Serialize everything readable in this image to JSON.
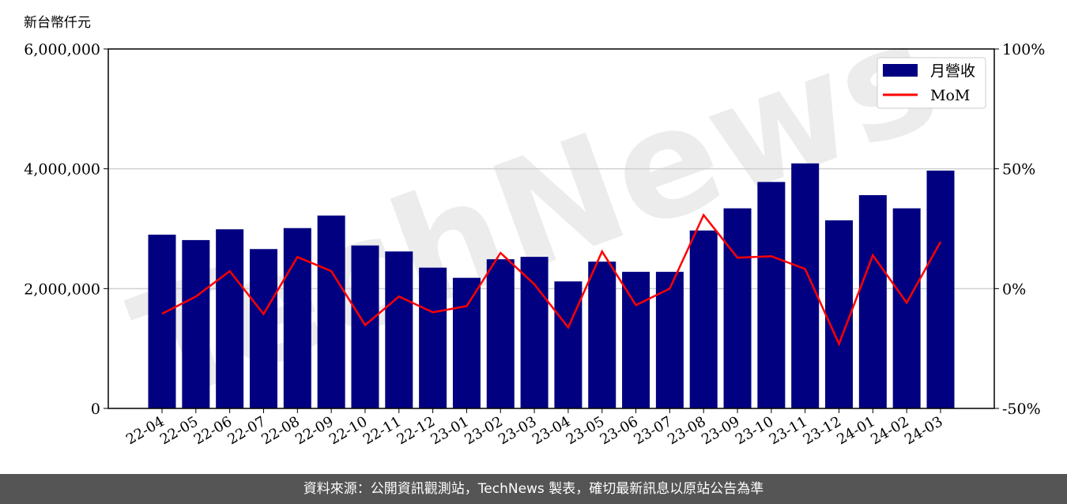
{
  "chart_data": {
    "type": "bar+line",
    "ylabel_left": "新台幣仟元",
    "categories": [
      "22-04",
      "22-05",
      "22-06",
      "22-07",
      "22-08",
      "22-09",
      "22-10",
      "22-11",
      "22-12",
      "23-01",
      "23-02",
      "23-03",
      "23-04",
      "23-05",
      "23-06",
      "23-07",
      "23-08",
      "23-09",
      "23-10",
      "23-11",
      "23-12",
      "24-01",
      "24-02",
      "24-03"
    ],
    "series": [
      {
        "name": "月營收",
        "type": "bar",
        "axis": "left",
        "color": "#000080",
        "values": [
          2900000,
          2810000,
          2990000,
          2660000,
          3010000,
          3220000,
          2720000,
          2620000,
          2350000,
          2180000,
          2490000,
          2530000,
          2120000,
          2450000,
          2280000,
          2280000,
          2970000,
          3340000,
          3780000,
          4090000,
          3140000,
          3560000,
          3340000,
          3970000
        ]
      },
      {
        "name": "MoM",
        "type": "line",
        "axis": "right",
        "color": "#ff0000",
        "values": [
          -10.5,
          -3.3,
          7.3,
          -10.6,
          13.2,
          7.3,
          -15.2,
          -3.3,
          -9.9,
          -7.3,
          14.9,
          1.8,
          -16.2,
          15.5,
          -6.9,
          0,
          30.7,
          12.9,
          13.5,
          8.2,
          -23.1,
          13.9,
          -5.9,
          19.5
        ]
      }
    ],
    "ylim_left": [
      0,
      6000000
    ],
    "yticks_left": [
      "0",
      "2,000,000",
      "4,000,000",
      "6,000,000"
    ],
    "ylim_right": [
      -50,
      100
    ],
    "yticks_right": [
      "-50%",
      "0%",
      "50%",
      "100%"
    ],
    "grid": "horizontal",
    "legend": "top-right"
  },
  "watermark": "TechNews",
  "footer": "資料來源：公開資訊觀測站，TechNews 製表，確切最新訊息以原站公告為準"
}
